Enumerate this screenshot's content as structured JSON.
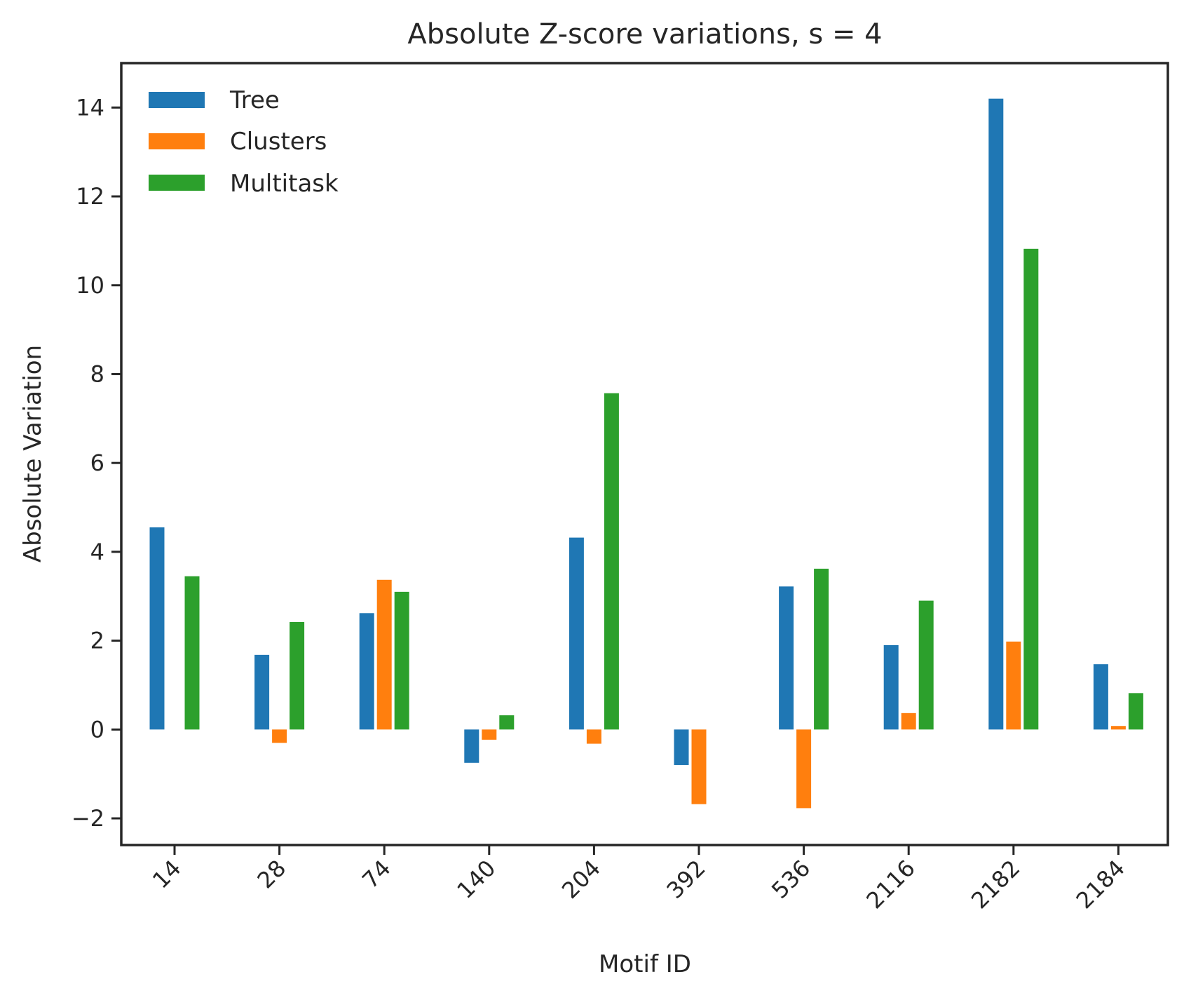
{
  "chart_data": {
    "type": "bar",
    "title": "Absolute Z-score variations, s = 4",
    "xlabel": "Motif ID",
    "ylabel": "Absolute Variation",
    "categories": [
      "14",
      "28",
      "74",
      "140",
      "204",
      "392",
      "536",
      "2116",
      "2182",
      "2184"
    ],
    "series": [
      {
        "name": "Tree",
        "color": "#1f77b4",
        "values": [
          4.55,
          1.68,
          2.62,
          -0.75,
          4.32,
          -0.8,
          3.22,
          1.9,
          14.2,
          1.47
        ]
      },
      {
        "name": "Clusters",
        "color": "#ff7f0e",
        "values": [
          0.0,
          -0.3,
          3.37,
          -0.23,
          -0.32,
          -1.68,
          -1.77,
          0.37,
          1.98,
          0.08
        ]
      },
      {
        "name": "Multitask",
        "color": "#2ca02c",
        "values": [
          3.45,
          2.42,
          3.1,
          0.32,
          7.57,
          0.0,
          3.62,
          2.9,
          10.82,
          0.82
        ]
      }
    ],
    "ylim": [
      -2.6,
      15.0
    ],
    "yticks": [
      -2,
      0,
      2,
      4,
      6,
      8,
      10,
      12,
      14
    ],
    "ytick_labels": [
      "−2",
      "0",
      "2",
      "4",
      "6",
      "8",
      "10",
      "12",
      "14"
    ],
    "grid": false,
    "legend_position": "top-left"
  }
}
